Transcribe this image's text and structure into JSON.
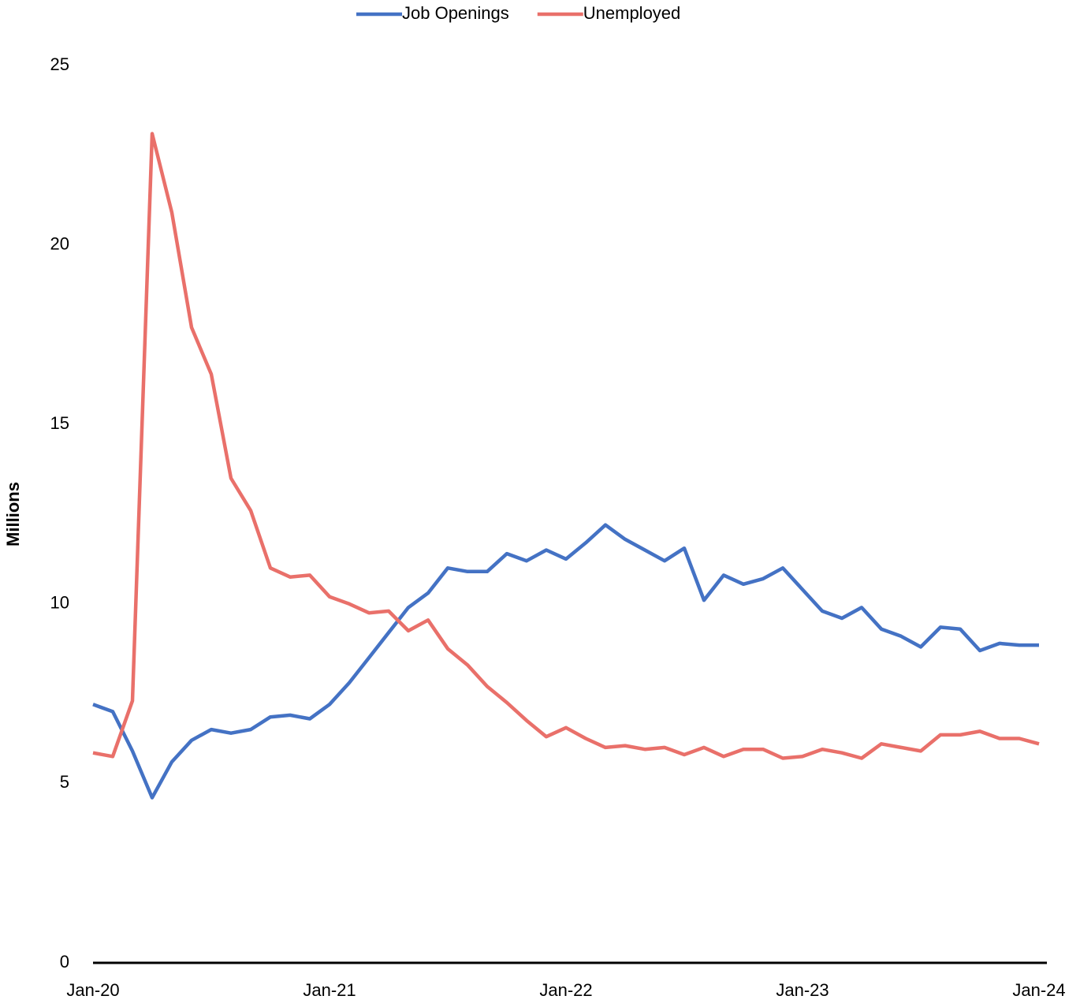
{
  "chart_data": {
    "type": "line",
    "y_label": "Millions",
    "categories": [
      "Jan-20",
      null,
      null,
      null,
      null,
      null,
      null,
      null,
      null,
      null,
      null,
      null,
      "Jan-21",
      null,
      null,
      null,
      null,
      null,
      null,
      null,
      null,
      null,
      null,
      null,
      "Jan-22",
      null,
      null,
      null,
      null,
      null,
      null,
      null,
      null,
      null,
      null,
      null,
      "Jan-23",
      null,
      null,
      null,
      null,
      null,
      null,
      null,
      null,
      null,
      null,
      null,
      "Jan-24"
    ],
    "series": [
      {
        "name": "Job Openings",
        "color": "#4472c4",
        "values": [
          7.2,
          7.0,
          5.9,
          4.6,
          5.6,
          6.2,
          6.5,
          6.4,
          6.5,
          6.85,
          6.9,
          6.8,
          7.2,
          7.8,
          8.5,
          9.2,
          9.9,
          10.3,
          11.0,
          10.9,
          10.9,
          11.4,
          11.2,
          11.5,
          11.25,
          11.7,
          12.2,
          11.8,
          11.5,
          11.2,
          11.55,
          10.1,
          10.8,
          10.55,
          10.7,
          11.0,
          10.4,
          9.8,
          9.6,
          9.9,
          9.3,
          9.1,
          8.8,
          9.35,
          9.3,
          8.7,
          8.9,
          8.85,
          8.85
        ]
      },
      {
        "name": "Unemployed",
        "color": "#e9706a",
        "values": [
          5.85,
          5.75,
          7.3,
          23.1,
          20.9,
          17.7,
          16.4,
          13.5,
          12.6,
          11.0,
          10.75,
          10.8,
          10.2,
          10.0,
          9.75,
          9.8,
          9.25,
          9.55,
          8.75,
          8.3,
          7.7,
          7.25,
          6.75,
          6.3,
          6.55,
          6.25,
          6.0,
          6.05,
          5.95,
          6.0,
          5.8,
          6.0,
          5.75,
          5.95,
          5.95,
          5.7,
          5.75,
          5.95,
          5.85,
          5.7,
          6.1,
          6.0,
          5.9,
          6.35,
          6.35,
          6.45,
          6.25,
          6.25,
          6.1
        ]
      }
    ],
    "ylim": [
      0,
      25
    ],
    "yticks": [
      0,
      5,
      10,
      15,
      20,
      25
    ],
    "grid": false,
    "legend": "top"
  }
}
